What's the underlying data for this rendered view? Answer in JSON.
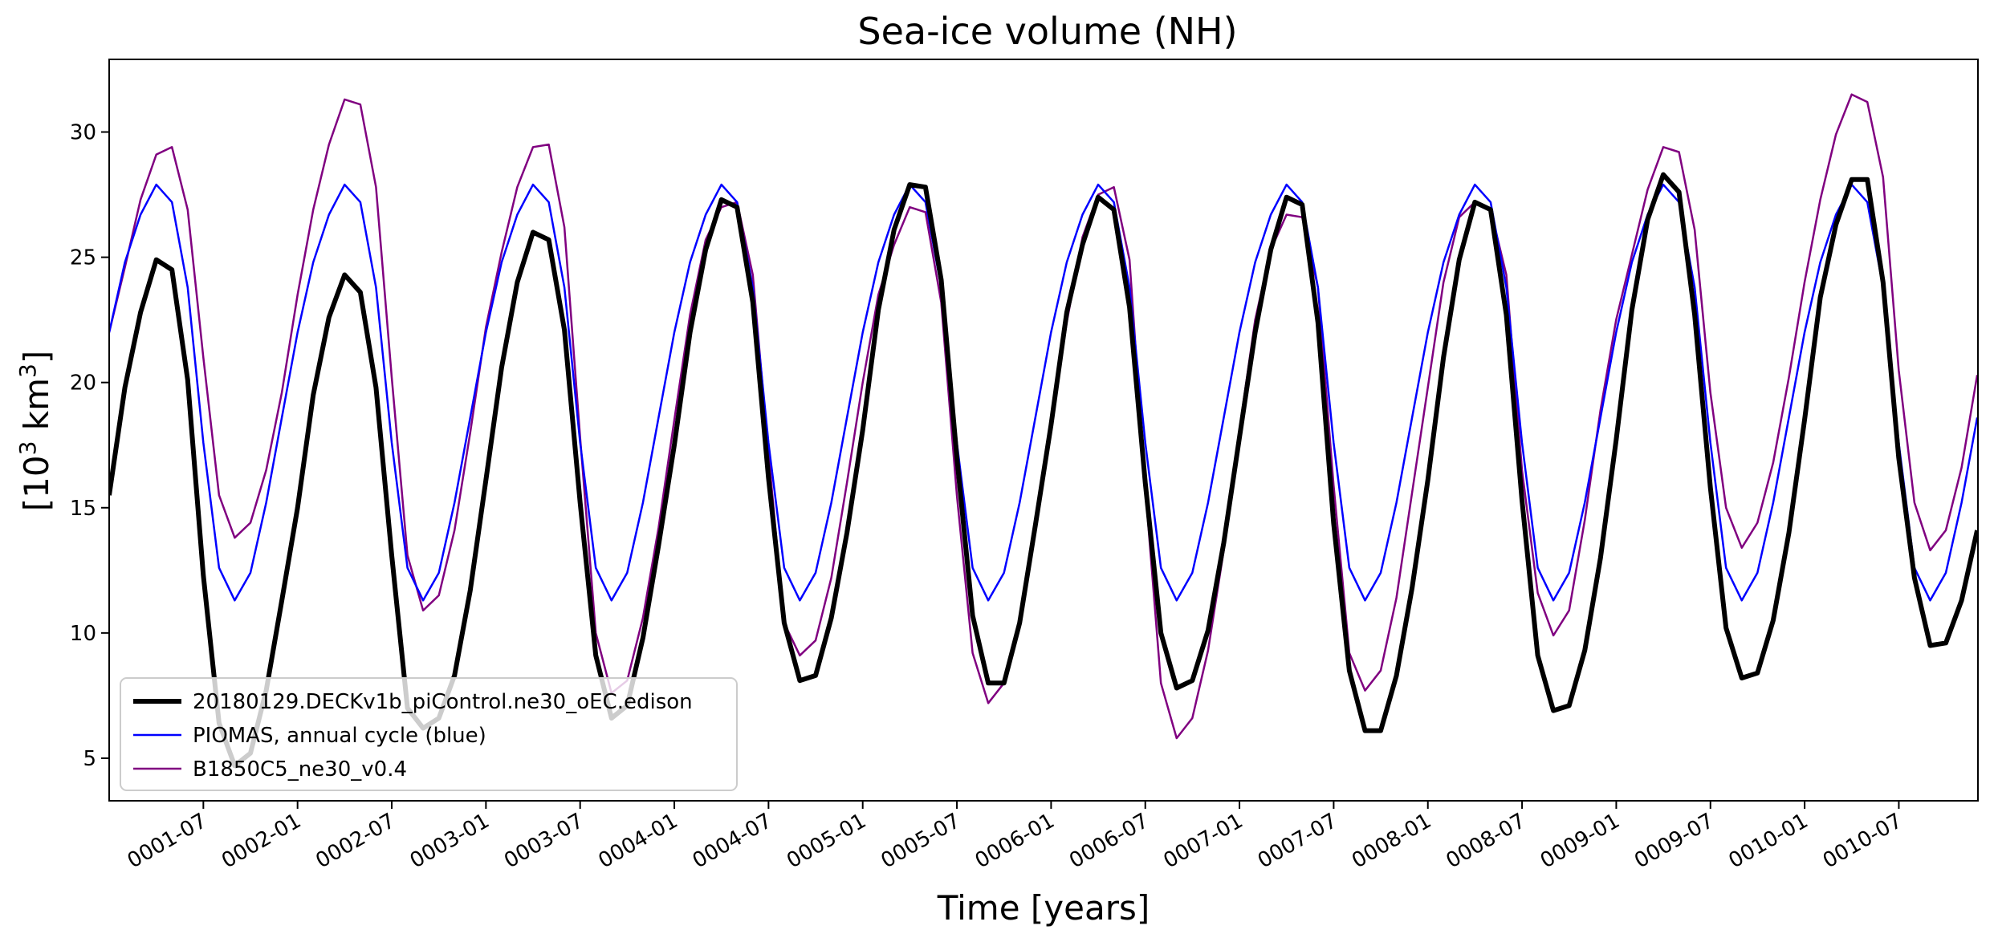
{
  "chart_data": {
    "type": "line",
    "title": "Sea-ice volume (NH)",
    "xlabel": "Time [years]",
    "ylabel_prefix": "[10",
    "ylabel_sup1": "3",
    "ylabel_mid": " km",
    "ylabel_sup2": "3",
    "ylabel_suffix": "]",
    "xlim": [
      1.0,
      10.92
    ],
    "ylim": [
      3.3,
      32.9
    ],
    "y_ticks": [
      5,
      10,
      15,
      20,
      25,
      30
    ],
    "x_ticks": [
      {
        "x": 1.5,
        "label": "0001-07"
      },
      {
        "x": 2.0,
        "label": "0002-01"
      },
      {
        "x": 2.5,
        "label": "0002-07"
      },
      {
        "x": 3.0,
        "label": "0003-01"
      },
      {
        "x": 3.5,
        "label": "0003-07"
      },
      {
        "x": 4.0,
        "label": "0004-01"
      },
      {
        "x": 4.5,
        "label": "0004-07"
      },
      {
        "x": 5.0,
        "label": "0005-01"
      },
      {
        "x": 5.5,
        "label": "0005-07"
      },
      {
        "x": 6.0,
        "label": "0006-01"
      },
      {
        "x": 6.5,
        "label": "0006-07"
      },
      {
        "x": 7.0,
        "label": "0007-01"
      },
      {
        "x": 7.5,
        "label": "0007-07"
      },
      {
        "x": 8.0,
        "label": "0008-01"
      },
      {
        "x": 8.5,
        "label": "0008-07"
      },
      {
        "x": 9.0,
        "label": "0009-01"
      },
      {
        "x": 9.5,
        "label": "0009-07"
      },
      {
        "x": 10.0,
        "label": "0010-01"
      },
      {
        "x": 10.5,
        "label": "0010-07"
      }
    ],
    "x_start": 1.0,
    "x_step": 0.08333,
    "legend_position": "lower-left",
    "series": [
      {
        "name": "20180129.DECKv1b_piControl.ne30_oEC.edison",
        "color": "#000000",
        "width": 6,
        "values": [
          15.5,
          19.8,
          22.8,
          24.9,
          24.5,
          20.1,
          12.3,
          6.4,
          4.7,
          5.2,
          7.7,
          11.3,
          15.0,
          19.5,
          22.6,
          24.3,
          23.6,
          19.8,
          13.1,
          7.0,
          6.2,
          6.6,
          8.3,
          11.7,
          16.1,
          20.6,
          24.0,
          26.0,
          25.7,
          22.1,
          15.2,
          9.1,
          6.6,
          7.1,
          9.8,
          13.5,
          17.5,
          22.0,
          25.3,
          27.3,
          27.0,
          23.2,
          16.2,
          10.4,
          8.1,
          8.3,
          10.6,
          14.0,
          18.1,
          22.9,
          26.1,
          27.9,
          27.8,
          24.1,
          17.0,
          10.7,
          8.0,
          8.0,
          10.4,
          14.3,
          18.3,
          22.8,
          25.5,
          27.4,
          26.9,
          23.0,
          16.0,
          10.0,
          7.8,
          8.1,
          10.1,
          13.6,
          17.8,
          22.0,
          25.3,
          27.4,
          27.1,
          22.4,
          14.4,
          8.5,
          6.1,
          6.1,
          8.3,
          11.8,
          16.1,
          21.0,
          24.9,
          27.2,
          26.9,
          22.7,
          15.3,
          9.1,
          6.9,
          7.1,
          9.3,
          13.0,
          17.7,
          22.9,
          26.5,
          28.3,
          27.6,
          22.7,
          15.8,
          10.2,
          8.2,
          8.4,
          10.5,
          14.0,
          18.5,
          23.4,
          26.3,
          28.1,
          28.1,
          24.0,
          17.0,
          12.2,
          9.5,
          9.6,
          11.3,
          14.1
        ]
      },
      {
        "name": "PIOMAS, annual cycle (blue)",
        "color": "#0000ff",
        "width": 2.5,
        "values": [
          22.0,
          24.8,
          26.7,
          27.9,
          27.2,
          23.8,
          17.6,
          12.6,
          11.3,
          12.4,
          15.2,
          18.6,
          22.0,
          24.8,
          26.7,
          27.9,
          27.2,
          23.8,
          17.6,
          12.6,
          11.3,
          12.4,
          15.2,
          18.6,
          22.0,
          24.8,
          26.7,
          27.9,
          27.2,
          23.8,
          17.6,
          12.6,
          11.3,
          12.4,
          15.2,
          18.6,
          22.0,
          24.8,
          26.7,
          27.9,
          27.2,
          23.8,
          17.6,
          12.6,
          11.3,
          12.4,
          15.2,
          18.6,
          22.0,
          24.8,
          26.7,
          27.9,
          27.2,
          23.8,
          17.6,
          12.6,
          11.3,
          12.4,
          15.2,
          18.6,
          22.0,
          24.8,
          26.7,
          27.9,
          27.2,
          23.8,
          17.6,
          12.6,
          11.3,
          12.4,
          15.2,
          18.6,
          22.0,
          24.8,
          26.7,
          27.9,
          27.2,
          23.8,
          17.6,
          12.6,
          11.3,
          12.4,
          15.2,
          18.6,
          22.0,
          24.8,
          26.7,
          27.9,
          27.2,
          23.8,
          17.6,
          12.6,
          11.3,
          12.4,
          15.2,
          18.6,
          22.0,
          24.8,
          26.7,
          27.9,
          27.2,
          23.8,
          17.6,
          12.6,
          11.3,
          12.4,
          15.2,
          18.6,
          22.0,
          24.8,
          26.7,
          27.9,
          27.2,
          23.8,
          17.6,
          12.6,
          11.3,
          12.4,
          15.2,
          18.6
        ]
      },
      {
        "name": "B1850C5_ne30_v0.4",
        "color": "#800080",
        "width": 2.5,
        "values": [
          22.0,
          24.6,
          27.3,
          29.1,
          29.4,
          26.9,
          21.0,
          15.5,
          13.8,
          14.4,
          16.5,
          19.6,
          23.5,
          26.9,
          29.5,
          31.3,
          31.1,
          27.8,
          20.2,
          13.1,
          10.9,
          11.5,
          14.1,
          18.0,
          22.2,
          25.2,
          27.8,
          29.4,
          29.5,
          26.2,
          17.8,
          10.0,
          7.6,
          8.1,
          10.6,
          14.2,
          18.5,
          22.7,
          25.7,
          27.0,
          27.2,
          24.3,
          17.2,
          10.4,
          9.1,
          9.7,
          12.2,
          16.0,
          20.0,
          23.5,
          25.5,
          27.0,
          26.8,
          23.2,
          15.5,
          9.2,
          7.2,
          8.0,
          10.4,
          14.1,
          18.4,
          22.4,
          25.8,
          27.5,
          27.8,
          24.9,
          15.8,
          8.0,
          5.8,
          6.6,
          9.3,
          13.3,
          18.1,
          22.5,
          25.3,
          26.7,
          26.6,
          23.8,
          15.9,
          9.2,
          7.7,
          8.5,
          11.4,
          15.6,
          19.8,
          24.0,
          26.6,
          27.2,
          26.9,
          24.3,
          16.5,
          11.6,
          9.9,
          10.9,
          14.5,
          18.9,
          22.5,
          25.1,
          27.7,
          29.4,
          29.2,
          26.1,
          19.6,
          15.0,
          13.4,
          14.4,
          16.8,
          20.2,
          24.0,
          27.3,
          29.9,
          31.5,
          31.2,
          28.2,
          20.5,
          15.2,
          13.3,
          14.1,
          16.6,
          20.3
        ]
      }
    ]
  }
}
